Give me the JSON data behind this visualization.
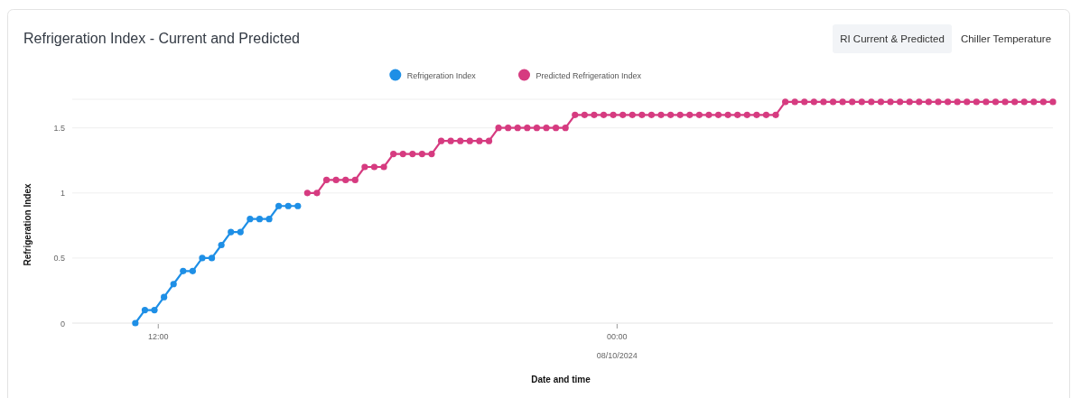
{
  "chart_data": {
    "type": "line",
    "title": "Refrigeration Index - Current and Predicted",
    "xlabel": "Date and time",
    "ylabel": "Refrigeration Index",
    "annotations": [
      "08/10/2024",
      "RI Current & Predicted",
      "Chiller Temperature"
    ],
    "xlim": [
      9.75,
      35.4
    ],
    "xticks": [
      {
        "value": 12,
        "label": "12:00"
      },
      {
        "value": 24,
        "label": "00:00"
      }
    ],
    "ylim": [
      0,
      1.72
    ],
    "yticks": [
      0,
      0.5,
      1,
      1.5
    ],
    "grid": "y",
    "legend": "top",
    "marker": "circle",
    "line_style": "solid",
    "series": [
      {
        "name": "Refrigeration Index",
        "color": "#1e8fe6",
        "x": [
          11.4,
          11.65,
          11.9,
          12.15,
          12.4,
          12.65,
          12.9,
          13.15,
          13.4,
          13.65,
          13.9,
          14.15,
          14.4,
          14.65,
          14.9,
          15.15,
          15.4,
          15.65
        ],
        "values": [
          0,
          0.1,
          0.1,
          0.2,
          0.3,
          0.4,
          0.4,
          0.5,
          0.5,
          0.6,
          0.7,
          0.7,
          0.8,
          0.8,
          0.8,
          0.9,
          0.9,
          0.9
        ]
      },
      {
        "name": "Predicted Refrigeration Index",
        "color": "#d63b80",
        "x": [
          15.9,
          16.15,
          16.4,
          16.65,
          16.9,
          17.15,
          17.4,
          17.65,
          17.9,
          18.15,
          18.4,
          18.65,
          18.9,
          19.15,
          19.4,
          19.65,
          19.9,
          20.15,
          20.4,
          20.65,
          20.9,
          21.15,
          21.4,
          21.65,
          21.9,
          22.15,
          22.4,
          22.65,
          22.9,
          23.15,
          23.4,
          23.65,
          23.9,
          24.15,
          24.4,
          24.65,
          24.9,
          25.15,
          25.4,
          25.65,
          25.9,
          26.15,
          26.4,
          26.65,
          26.9,
          27.15,
          27.4,
          27.65,
          27.9,
          28.15,
          28.4,
          28.65,
          28.9,
          29.15,
          29.4,
          29.65,
          29.9,
          30.15,
          30.4,
          30.65,
          30.9,
          31.15,
          31.4,
          31.65,
          31.9,
          32.15,
          32.4,
          32.65,
          32.9,
          33.15,
          33.4,
          33.65,
          33.9,
          34.15,
          34.4,
          34.65,
          34.9,
          35.15,
          35.4
        ],
        "values": [
          1,
          1,
          1.1,
          1.1,
          1.1,
          1.1,
          1.2,
          1.2,
          1.2,
          1.3,
          1.3,
          1.3,
          1.3,
          1.3,
          1.4,
          1.4,
          1.4,
          1.4,
          1.4,
          1.4,
          1.5,
          1.5,
          1.5,
          1.5,
          1.5,
          1.5,
          1.5,
          1.5,
          1.6,
          1.6,
          1.6,
          1.6,
          1.6,
          1.6,
          1.6,
          1.6,
          1.6,
          1.6,
          1.6,
          1.6,
          1.6,
          1.6,
          1.6,
          1.6,
          1.6,
          1.6,
          1.6,
          1.6,
          1.6,
          1.6,
          1.7,
          1.7,
          1.7,
          1.7,
          1.7,
          1.7,
          1.7,
          1.7,
          1.7,
          1.7,
          1.7,
          1.7,
          1.7,
          1.7,
          1.7,
          1.7,
          1.7,
          1.7,
          1.7,
          1.7,
          1.7,
          1.7,
          1.7,
          1.7,
          1.7,
          1.7,
          1.7,
          1.7,
          1.7
        ]
      }
    ]
  }
}
